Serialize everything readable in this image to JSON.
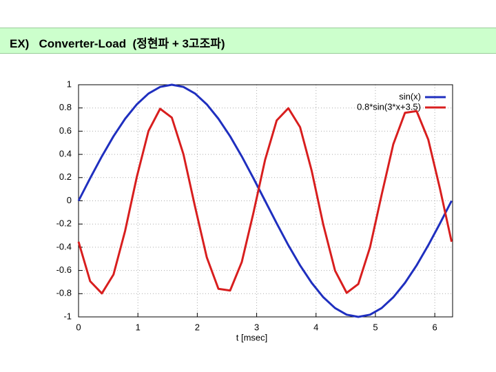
{
  "header": {
    "title": "EX)   Converter-Load  (정현파 + 3고조파)"
  },
  "chart_data": {
    "type": "line",
    "xlabel": "t [msec]",
    "x": [
      0,
      0.196,
      0.393,
      0.589,
      0.785,
      0.982,
      1.178,
      1.374,
      1.571,
      1.767,
      1.963,
      2.16,
      2.356,
      2.553,
      2.749,
      2.945,
      3.142,
      3.338,
      3.534,
      3.731,
      3.927,
      4.123,
      4.32,
      4.516,
      4.712,
      4.909,
      5.105,
      5.301,
      5.498,
      5.694,
      5.89,
      6.087,
      6.283
    ],
    "series": [
      {
        "name": "sin(x)",
        "color": "#1f2fbf",
        "values": [
          0,
          0.195,
          0.383,
          0.556,
          0.707,
          0.831,
          0.924,
          0.981,
          1,
          0.981,
          0.924,
          0.831,
          0.707,
          0.556,
          0.383,
          0.195,
          0,
          -0.195,
          -0.383,
          -0.556,
          -0.707,
          -0.831,
          -0.924,
          -0.981,
          -1,
          -0.981,
          -0.924,
          -0.831,
          -0.707,
          -0.556,
          -0.383,
          -0.195,
          0
        ]
      },
      {
        "name": "0.8*sin(3*x+3.5)",
        "color": "#d81e1e",
        "values": [
          -0.353,
          -0.693,
          -0.798,
          -0.635,
          -0.258,
          0.207,
          0.601,
          0.793,
          0.717,
          0.401,
          -0.052,
          -0.487,
          -0.758,
          -0.773,
          -0.528,
          -0.105,
          0.353,
          0.693,
          0.798,
          0.635,
          0.258,
          -0.207,
          -0.601,
          -0.793,
          -0.717,
          -0.401,
          0.052,
          0.487,
          0.758,
          0.773,
          0.528,
          0.105,
          -0.353
        ]
      }
    ],
    "xlim": [
      0,
      6.3
    ],
    "xticks": [
      0,
      1,
      2,
      3,
      4,
      5,
      6
    ],
    "ylim": [
      -1,
      1
    ],
    "yticks": [
      1,
      0.8,
      0.6,
      0.4,
      0.2,
      0,
      -0.2,
      -0.4,
      -0.6,
      -0.8,
      -1
    ],
    "grid": true,
    "legend": "top-right"
  }
}
